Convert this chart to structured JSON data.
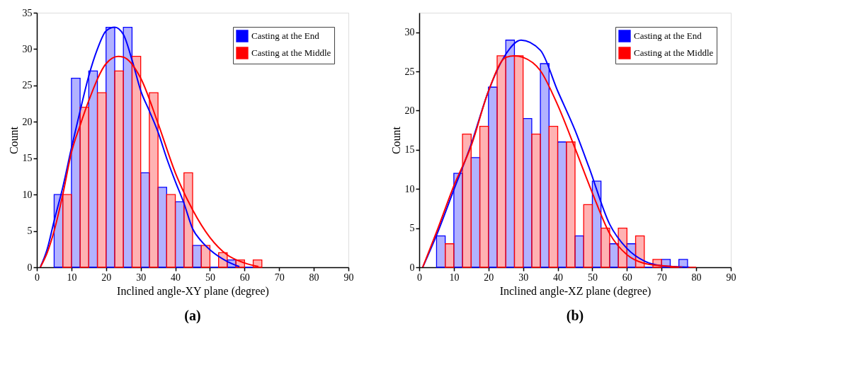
{
  "chart_data": [
    {
      "type": "histogram",
      "xlabel": "Inclined angle-XY plane (degree)",
      "ylabel": "Count",
      "annotations": [
        "(a)"
      ],
      "bins": [
        5,
        10,
        15,
        20,
        25,
        30,
        35,
        40,
        45,
        50,
        55,
        60,
        65
      ],
      "series": [
        {
          "name": "Casting at the End",
          "color": "#0000ff",
          "values": [
            10,
            26,
            27,
            33,
            33,
            13,
            11,
            9,
            3,
            0,
            1,
            0
          ]
        },
        {
          "name": "Casting at the Middle",
          "color": "#ff0000",
          "values": [
            10,
            22,
            24,
            27,
            29,
            24,
            10,
            13,
            3,
            2,
            1,
            1
          ]
        },
        {
          "type": "line",
          "color": "#0000ff",
          "x": [
            1,
            3,
            5,
            7.5,
            10,
            12.5,
            15,
            17.5,
            20,
            22.5,
            25,
            27.5,
            30,
            32.5,
            35,
            37.5,
            40,
            42.5,
            45,
            47.5,
            50,
            55,
            58.5
          ],
          "values": [
            0,
            2.5,
            6.4,
            11,
            16.4,
            21.5,
            26.3,
            30,
            32.5,
            33,
            32,
            28.5,
            24.3,
            21.5,
            18.6,
            15,
            11.8,
            8.8,
            5.3,
            3.6,
            2.4,
            0.8,
            0.1
          ]
        },
        {
          "type": "line",
          "color": "#ff0000",
          "x": [
            1,
            3,
            5,
            7.5,
            10,
            12.5,
            15,
            20,
            23.5,
            25,
            30,
            35,
            40,
            45,
            50,
            55,
            60,
            64
          ],
          "values": [
            0,
            2,
            5,
            10,
            15.8,
            19.5,
            22.9,
            28,
            29,
            28.9,
            26,
            19.8,
            13,
            7.9,
            4.1,
            1.7,
            0.6,
            0.1
          ]
        }
      ],
      "xlim": [
        0,
        90
      ],
      "xticks": [
        0,
        10,
        20,
        30,
        40,
        50,
        60,
        70,
        80,
        90
      ],
      "ylim": [
        0,
        35
      ],
      "yticks": [
        0,
        5,
        10,
        15,
        20,
        25,
        30,
        35
      ],
      "legend": "top right",
      "grid": false
    },
    {
      "type": "histogram",
      "xlabel": "Inclined angle-XZ plane (degree)",
      "ylabel": "Count",
      "annotations": [
        "(b)"
      ],
      "bins": [
        5,
        10,
        15,
        20,
        25,
        30,
        35,
        40,
        45,
        50,
        55,
        60,
        65,
        70,
        75,
        80
      ],
      "series": [
        {
          "name": "Casting at the End",
          "color": "#0000ff",
          "values": [
            4,
            12,
            14,
            23,
            29,
            19,
            26,
            16,
            4,
            11,
            3,
            3,
            0,
            1,
            1
          ]
        },
        {
          "name": "Casting at the Middle",
          "color": "#ff0000",
          "values": [
            3,
            17,
            18,
            27,
            27,
            17,
            18,
            16,
            8,
            5,
            5,
            4,
            1,
            0,
            0
          ]
        },
        {
          "type": "line",
          "color": "#0000ff",
          "x": [
            1,
            5,
            10,
            15,
            20,
            25,
            29.4,
            35,
            40,
            45,
            49,
            55,
            60,
            65,
            70,
            78
          ],
          "values": [
            0,
            4.1,
            9.9,
            15.7,
            22.5,
            27.2,
            29,
            27.7,
            22.5,
            17.5,
            12.8,
            5.5,
            2.4,
            0.8,
            0.2,
            0
          ]
        },
        {
          "type": "line",
          "color": "#ff0000",
          "x": [
            1,
            5,
            10,
            15,
            20,
            25,
            27.5,
            30,
            35,
            40,
            45,
            50,
            55,
            60,
            65,
            70,
            76
          ],
          "values": [
            0,
            4.5,
            10.4,
            15.5,
            22.5,
            26.8,
            27,
            26.8,
            25.1,
            20.7,
            15.2,
            9.5,
            4.3,
            1.6,
            0.5,
            0.2,
            0
          ]
        }
      ],
      "xlim": [
        0,
        90
      ],
      "xticks": [
        0,
        10,
        20,
        30,
        40,
        50,
        60,
        70,
        80,
        90
      ],
      "ylim": [
        0,
        32.5
      ],
      "yticks": [
        0,
        5,
        10,
        15,
        20,
        25,
        30
      ],
      "legend": "top right",
      "grid": false
    }
  ]
}
